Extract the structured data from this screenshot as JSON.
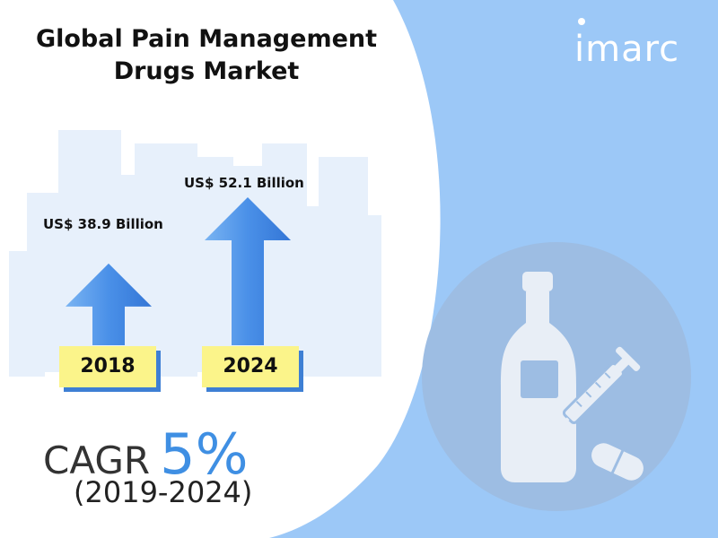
{
  "title_line1": "Global Pain Management",
  "title_line2": "Drugs Market",
  "brand": {
    "logo_text": "imarc"
  },
  "colors": {
    "arrow": "#4a90e8",
    "arrow_light": "#9ec9f5",
    "year_box": "#fbf48a",
    "year_shadow": "#3e7fd4",
    "panel": "#9cc8f7",
    "circle": "#9dbde3",
    "cagr_accent": "#3f8fe3"
  },
  "chart_data": {
    "type": "bar",
    "categories": [
      "2018",
      "2024"
    ],
    "values": [
      38.9,
      52.1
    ],
    "value_labels": [
      "US$ 38.9 Billion",
      "US$ 52.1 Billion"
    ],
    "unit": "US$ Billion",
    "title": "Global Pain Management Drugs Market",
    "mark": "arrow",
    "annotations": {
      "cagr_label": "CAGR",
      "cagr_value": "5%",
      "period": "(2019-2024)"
    }
  },
  "illustration": {
    "icons": [
      "bottle-icon",
      "syringe-icon",
      "pill-icon"
    ]
  }
}
